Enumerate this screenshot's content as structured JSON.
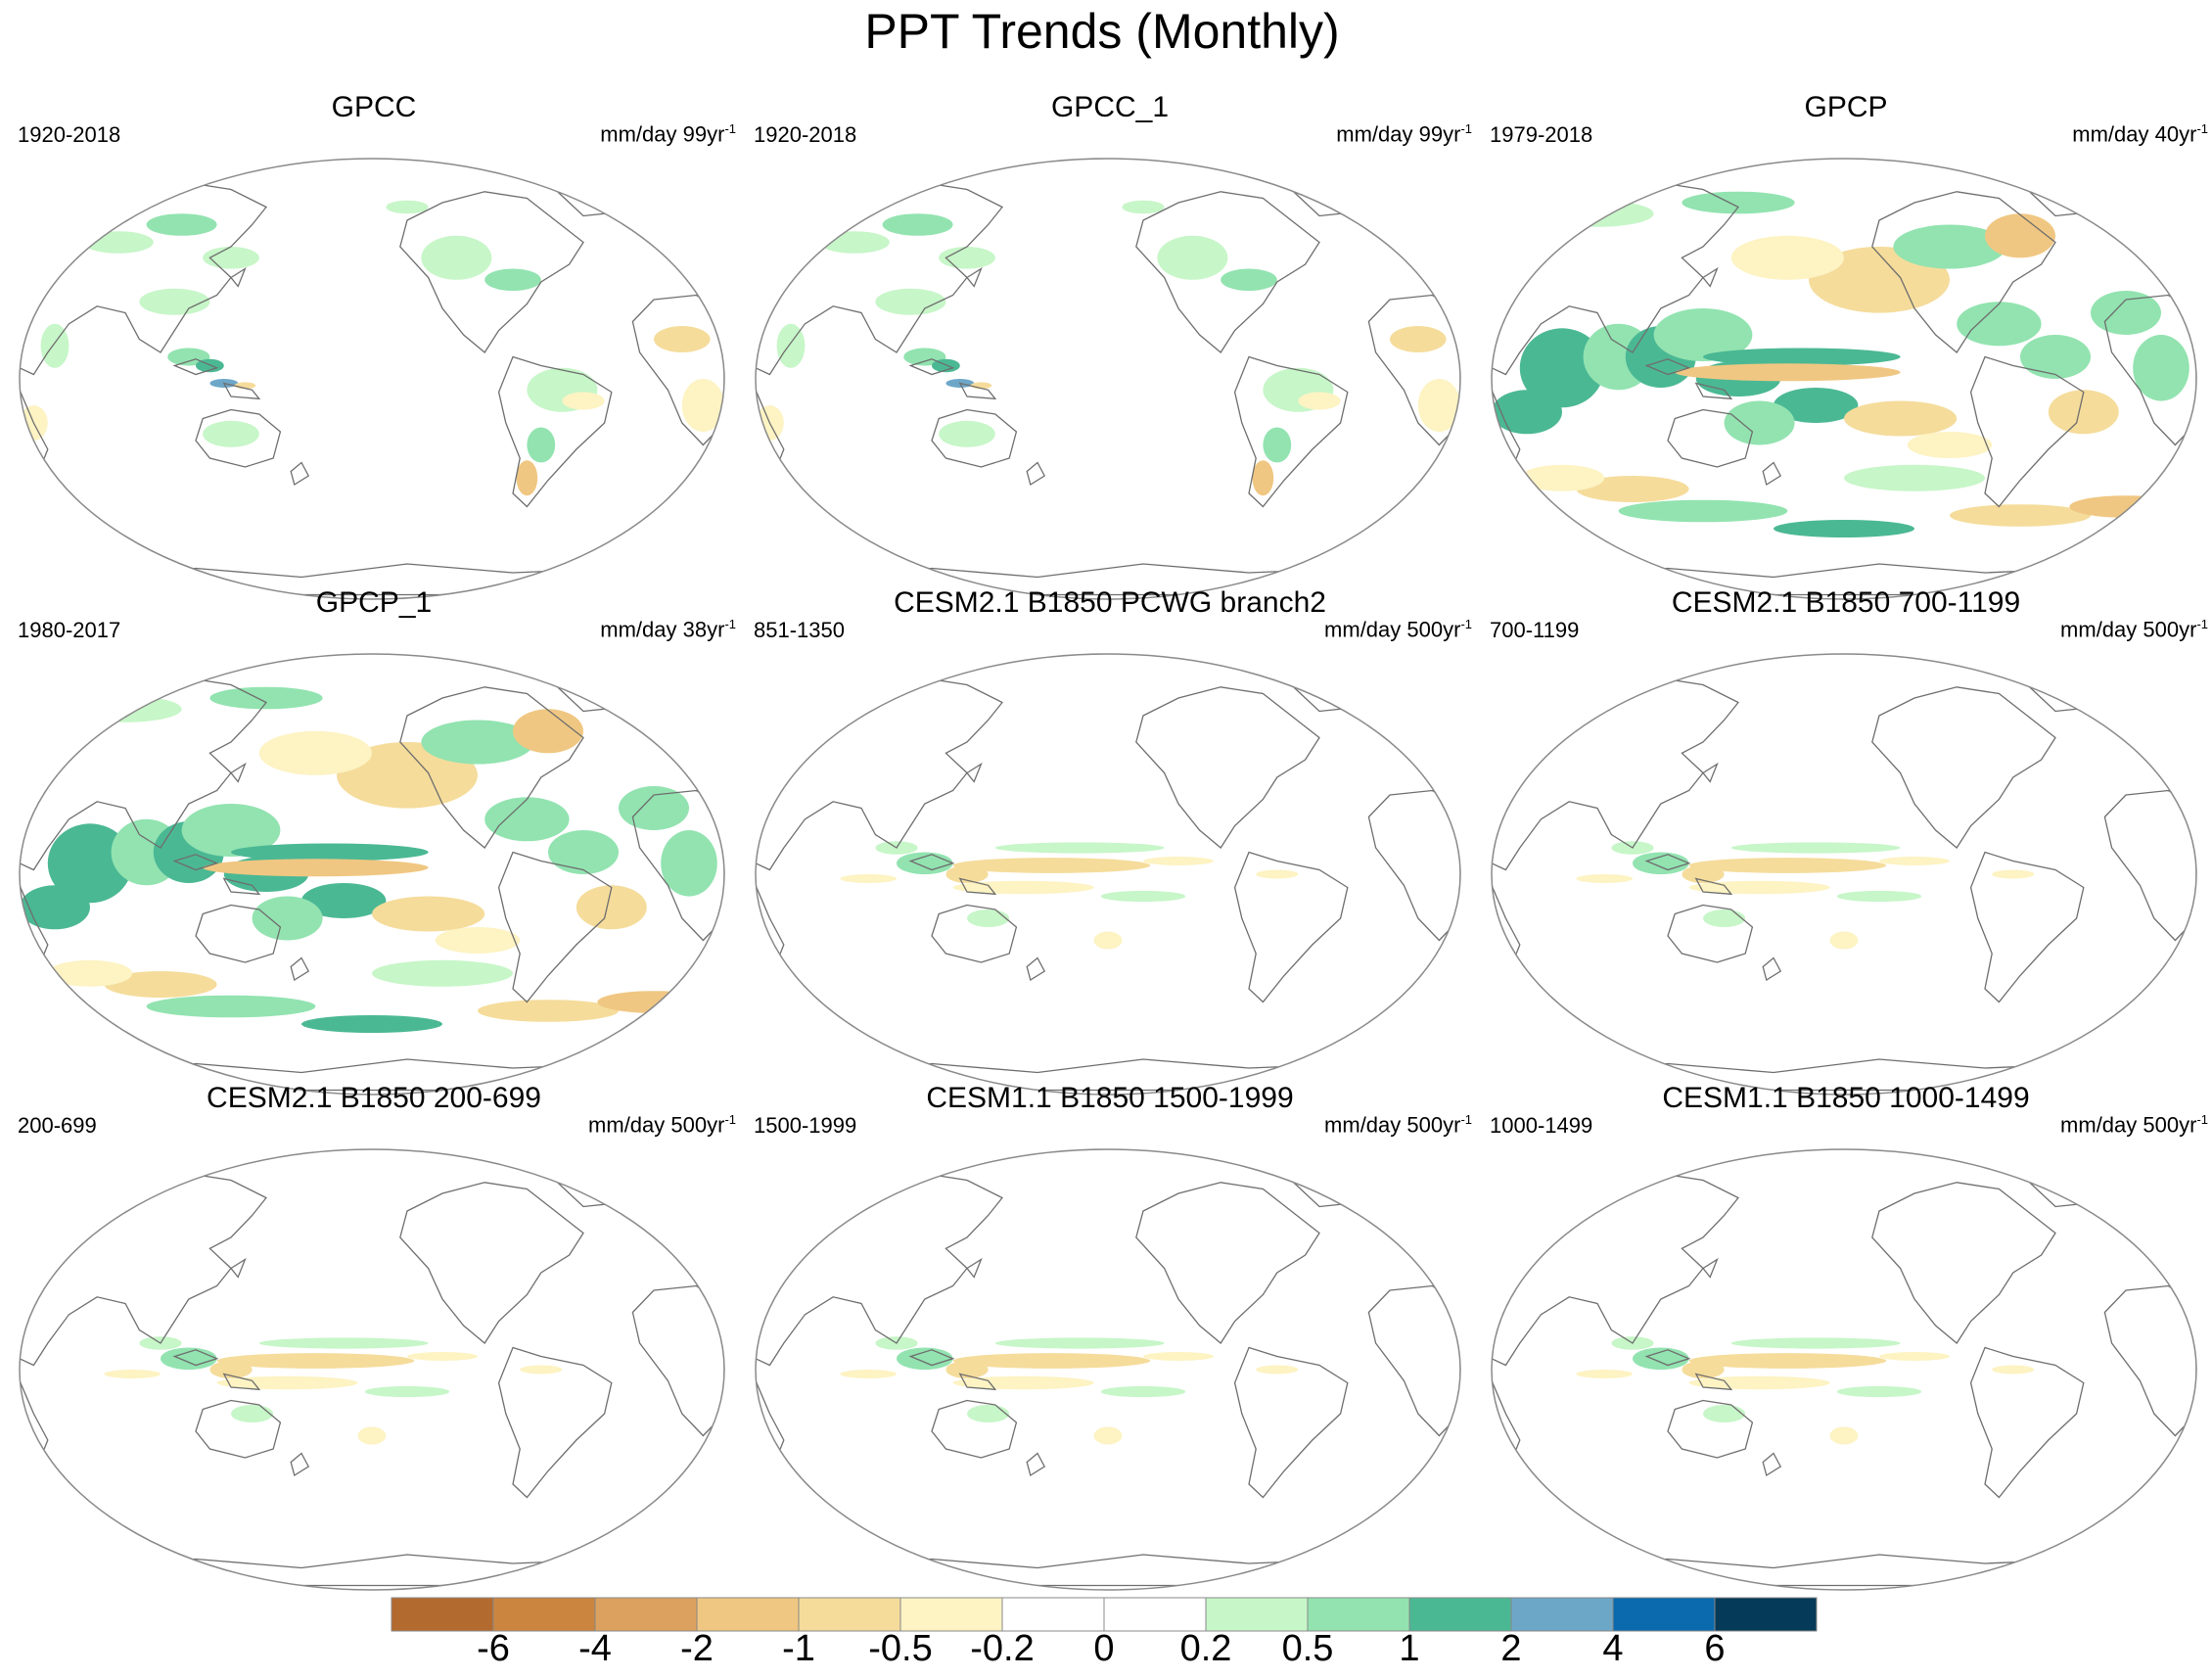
{
  "figure": {
    "title": "PPT Trends (Monthly)"
  },
  "panels": [
    {
      "title": "GPCC",
      "period": "1920-2018",
      "units": "mm/day 99yr",
      "units_exp": "-1",
      "pattern": "land"
    },
    {
      "title": "GPCC_1",
      "period": "1920-2018",
      "units": "mm/day 99yr",
      "units_exp": "-1",
      "pattern": "land"
    },
    {
      "title": "GPCP",
      "period": "1979-2018",
      "units": "mm/day 40yr",
      "units_exp": "-1",
      "pattern": "global"
    },
    {
      "title": "GPCP_1",
      "period": "1980-2017",
      "units": "mm/day 38yr",
      "units_exp": "-1",
      "pattern": "global"
    },
    {
      "title": "CESM2.1 B1850 PCWG branch2",
      "period": "851-1350",
      "units": "mm/day 500yr",
      "units_exp": "-1",
      "pattern": "model"
    },
    {
      "title": "CESM2.1 B1850 700-1199",
      "period": "700-1199",
      "units": "mm/day 500yr",
      "units_exp": "-1",
      "pattern": "model"
    },
    {
      "title": "CESM2.1 B1850 200-699",
      "period": "200-699",
      "units": "mm/day 500yr",
      "units_exp": "-1",
      "pattern": "model"
    },
    {
      "title": "CESM1.1 B1850 1500-1999",
      "period": "1500-1999",
      "units": "mm/day 500yr",
      "units_exp": "-1",
      "pattern": "model"
    },
    {
      "title": "CESM1.1 B1850 1000-1499",
      "period": "1000-1499",
      "units": "mm/day 500yr",
      "units_exp": "-1",
      "pattern": "model"
    }
  ],
  "colorbar": {
    "levels": [
      "-6",
      "-4",
      "-2",
      "-1",
      "-0.5",
      "-0.2",
      "0",
      "0.2",
      "0.5",
      "1",
      "2",
      "4",
      "6"
    ],
    "colors": [
      "#b36a2e",
      "#cb853f",
      "#dca15f",
      "#f0c782",
      "#f5dc9b",
      "#fdf3c3",
      "#ffffff",
      "#ffffff",
      "#c7f6c8",
      "#92e3b0",
      "#4bb894",
      "#6da7c8",
      "#0a6aad",
      "#053a58"
    ]
  },
  "palette": {
    "coast": "#6e6e6e",
    "frame": "#8a8a8a"
  }
}
